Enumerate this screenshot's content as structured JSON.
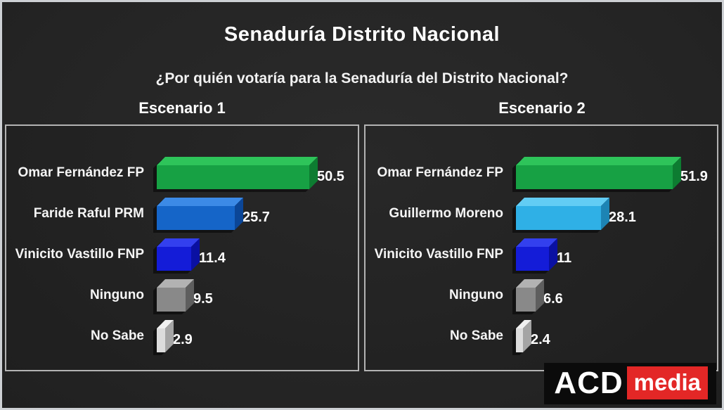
{
  "header": {
    "title": "Senaduría Distrito Nacional",
    "subtitle": "¿Por quién votaría para la Senaduría del Distrito Nacional?"
  },
  "logo": {
    "primary": "ACD",
    "secondary": "media",
    "primary_bg": "#0b0b0b",
    "secondary_bg": "#e32726"
  },
  "chart_data": [
    {
      "type": "bar",
      "orientation": "horizontal",
      "title": "Escenario 1",
      "categories": [
        "Omar Fernández FP",
        "Faride Raful PRM",
        "Vinicito Vastillo FNP",
        "Ninguno",
        "No Sabe"
      ],
      "values": [
        50.5,
        25.7,
        11.4,
        9.5,
        2.9
      ],
      "value_labels": [
        "50.5",
        "25.7",
        "11.4",
        "9.5",
        "2.9"
      ],
      "colors": [
        {
          "front": "#17a144",
          "top": "#2ec45a",
          "side": "#0d7c31"
        },
        {
          "front": "#1565c8",
          "top": "#3c8ae6",
          "side": "#0b4697"
        },
        {
          "front": "#141cd8",
          "top": "#3340ee",
          "side": "#0a10a2"
        },
        {
          "front": "#898989",
          "top": "#b2b2b2",
          "side": "#5e5e5e"
        },
        {
          "front": "#dcdcdc",
          "top": "#f0f0f0",
          "side": "#a5a5a5"
        }
      ],
      "xlim": [
        0,
        55
      ],
      "grid": false,
      "legend": false,
      "value_labels_position": "right-of-bar"
    },
    {
      "type": "bar",
      "orientation": "horizontal",
      "title": "Escenario 2",
      "categories": [
        "Omar Fernández FP",
        "Guillermo Moreno",
        "Vinicito Vastillo FNP",
        "Ninguno",
        "No Sabe"
      ],
      "values": [
        51.9,
        28.1,
        11,
        6.6,
        2.4
      ],
      "value_labels": [
        "51.9",
        "28.1",
        "11",
        "6.6",
        "2.4"
      ],
      "colors": [
        {
          "front": "#17a144",
          "top": "#2ec45a",
          "side": "#0d7c31"
        },
        {
          "front": "#2fb0e6",
          "top": "#62cdf4",
          "side": "#1d84b4"
        },
        {
          "front": "#141cd8",
          "top": "#3340ee",
          "side": "#0a10a2"
        },
        {
          "front": "#898989",
          "top": "#b2b2b2",
          "side": "#5e5e5e"
        },
        {
          "front": "#dcdcdc",
          "top": "#f0f0f0",
          "side": "#a5a5a5"
        }
      ],
      "xlim": [
        0,
        55
      ],
      "grid": false,
      "legend": false,
      "value_labels_position": "right-of-bar"
    }
  ]
}
